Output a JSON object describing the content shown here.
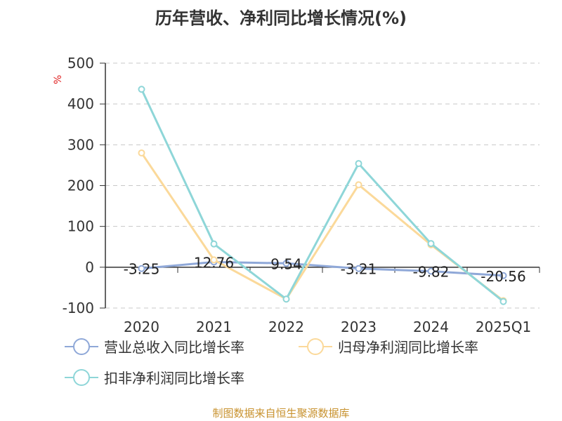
{
  "title": "历年营收、净利同比增长情况(%)",
  "unit_label": "%",
  "source_note": "制图数据来自恒生聚源数据库",
  "chart_data": {
    "type": "line",
    "categories": [
      "2020",
      "2021",
      "2022",
      "2023",
      "2024",
      "2025Q1"
    ],
    "ylim": [
      -100,
      500
    ],
    "yticks": [
      -100,
      0,
      100,
      200,
      300,
      400,
      500
    ],
    "grid": true,
    "legend_position": "bottom",
    "series": [
      {
        "name": "营业总收入同比增长率",
        "color": "#8fa8d8",
        "values": [
          -3.25,
          12.76,
          9.54,
          -3.21,
          -9.82,
          -20.56
        ],
        "labels": [
          "-3.25",
          "12.76",
          "9.54",
          "-3.21",
          "-9.82",
          "-20.56"
        ]
      },
      {
        "name": "归母净利润同比增长率",
        "color": "#fbd99a",
        "values": [
          280,
          18,
          -78,
          202,
          55,
          -82
        ]
      },
      {
        "name": "扣非净利润同比增长率",
        "color": "#8ed6d8",
        "values": [
          436,
          57,
          -78,
          254,
          58,
          -84
        ]
      }
    ]
  }
}
